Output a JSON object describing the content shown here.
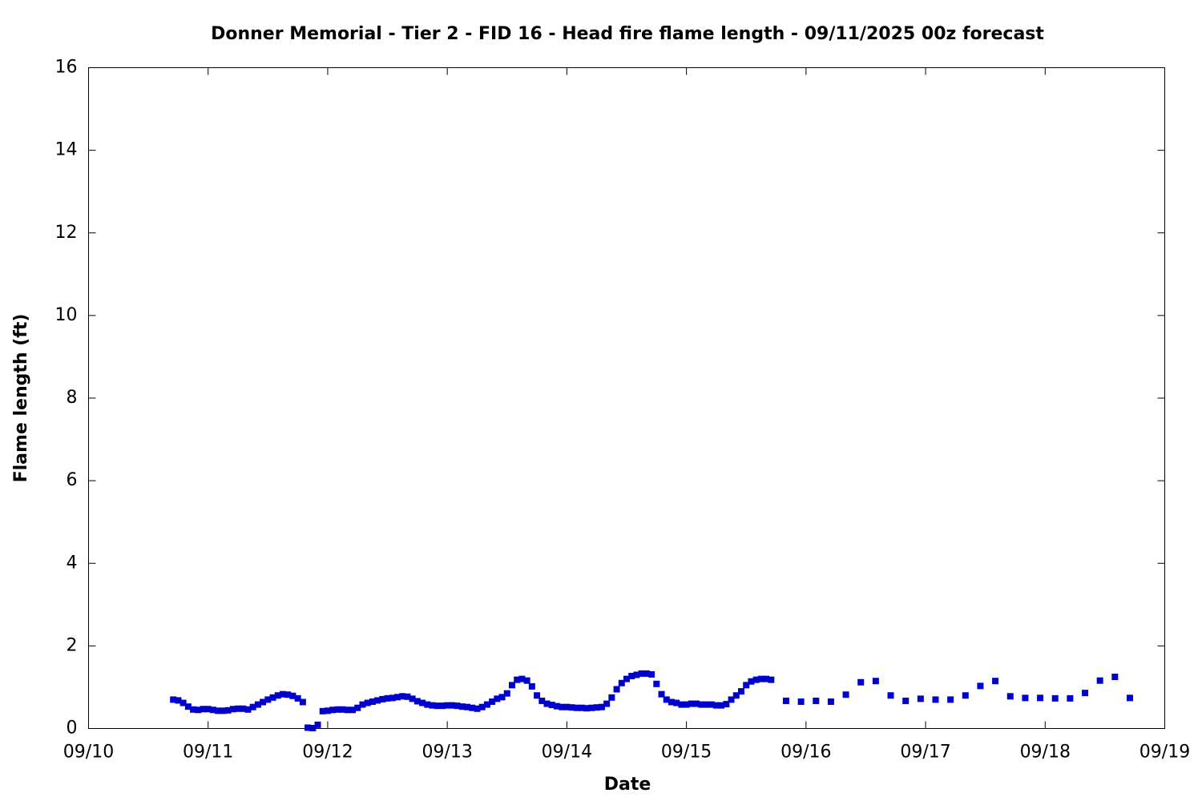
{
  "chart_data": {
    "type": "scatter",
    "title": "Donner Memorial - Tier 2 - FID 16 - Head fire flame length - 09/11/2025 00z forecast",
    "xlabel": "Date",
    "ylabel": "Flame length (ft)",
    "series": [
      {
        "name": "Head fire flame length",
        "color": "#0000cc",
        "x": [
          17,
          18,
          19,
          20,
          21,
          22,
          23,
          24,
          25,
          26,
          27,
          28,
          29,
          30,
          31,
          32,
          33,
          34,
          35,
          36,
          37,
          38,
          39,
          40,
          41,
          42,
          43,
          44,
          45,
          46,
          47,
          48,
          49,
          50,
          51,
          52,
          53,
          54,
          55,
          56,
          57,
          58,
          59,
          60,
          61,
          62,
          63,
          64,
          65,
          66,
          67,
          68,
          69,
          70,
          71,
          72,
          73,
          74,
          75,
          76,
          77,
          78,
          79,
          80,
          81,
          82,
          83,
          84,
          85,
          86,
          87,
          88,
          89,
          90,
          91,
          92,
          93,
          94,
          95,
          96,
          97,
          98,
          99,
          100,
          101,
          102,
          103,
          104,
          105,
          106,
          107,
          108,
          109,
          110,
          111,
          112,
          113,
          114,
          115,
          116,
          117,
          118,
          119,
          120,
          121,
          122,
          123,
          124,
          125,
          126,
          127,
          128,
          129,
          130,
          131,
          132,
          133,
          134,
          135,
          136,
          137,
          140,
          143,
          146,
          149,
          152,
          155,
          158,
          161,
          164,
          167,
          170,
          173,
          176,
          179,
          182,
          185,
          188,
          191,
          194,
          197,
          200,
          203,
          206,
          209
        ],
        "values": [
          0.7,
          0.68,
          0.62,
          0.53,
          0.46,
          0.45,
          0.47,
          0.47,
          0.45,
          0.43,
          0.43,
          0.44,
          0.47,
          0.48,
          0.48,
          0.46,
          0.52,
          0.58,
          0.64,
          0.7,
          0.75,
          0.8,
          0.83,
          0.82,
          0.79,
          0.73,
          0.64,
          0.02,
          0.01,
          0.09,
          0.42,
          0.43,
          0.45,
          0.46,
          0.46,
          0.45,
          0.45,
          0.5,
          0.58,
          0.62,
          0.65,
          0.68,
          0.71,
          0.73,
          0.74,
          0.76,
          0.78,
          0.77,
          0.72,
          0.66,
          0.62,
          0.58,
          0.56,
          0.55,
          0.55,
          0.56,
          0.56,
          0.55,
          0.53,
          0.52,
          0.5,
          0.48,
          0.52,
          0.58,
          0.65,
          0.72,
          0.76,
          0.85,
          1.05,
          1.18,
          1.2,
          1.16,
          1.02,
          0.8,
          0.67,
          0.6,
          0.57,
          0.54,
          0.52,
          0.52,
          0.51,
          0.5,
          0.5,
          0.49,
          0.5,
          0.51,
          0.52,
          0.6,
          0.75,
          0.95,
          1.1,
          1.2,
          1.27,
          1.3,
          1.33,
          1.33,
          1.31,
          1.08,
          0.83,
          0.7,
          0.64,
          0.62,
          0.58,
          0.58,
          0.6,
          0.6,
          0.58,
          0.58,
          0.58,
          0.56,
          0.56,
          0.59,
          0.7,
          0.8,
          0.9,
          1.05,
          1.14,
          1.18,
          1.2,
          1.2,
          1.18,
          0.67,
          0.65,
          0.67,
          0.65,
          0.82,
          1.12,
          1.15,
          0.8,
          0.67,
          0.72,
          0.7,
          0.7,
          0.8,
          1.03,
          1.15,
          0.78,
          0.74,
          0.74,
          0.73,
          0.73,
          0.86,
          1.16,
          1.25,
          0.74
        ]
      }
    ],
    "xlim": [
      0,
      216
    ],
    "xticks": [
      {
        "value": 0,
        "label": "09/10"
      },
      {
        "value": 24,
        "label": "09/11"
      },
      {
        "value": 48,
        "label": "09/12"
      },
      {
        "value": 72,
        "label": "09/13"
      },
      {
        "value": 96,
        "label": "09/14"
      },
      {
        "value": 120,
        "label": "09/15"
      },
      {
        "value": 144,
        "label": "09/16"
      },
      {
        "value": 168,
        "label": "09/17"
      },
      {
        "value": 192,
        "label": "09/18"
      },
      {
        "value": 216,
        "label": "09/19"
      }
    ],
    "ylim": [
      0,
      16
    ],
    "yticks": [
      0,
      2,
      4,
      6,
      8,
      10,
      12,
      14,
      16
    ],
    "grid": false
  }
}
